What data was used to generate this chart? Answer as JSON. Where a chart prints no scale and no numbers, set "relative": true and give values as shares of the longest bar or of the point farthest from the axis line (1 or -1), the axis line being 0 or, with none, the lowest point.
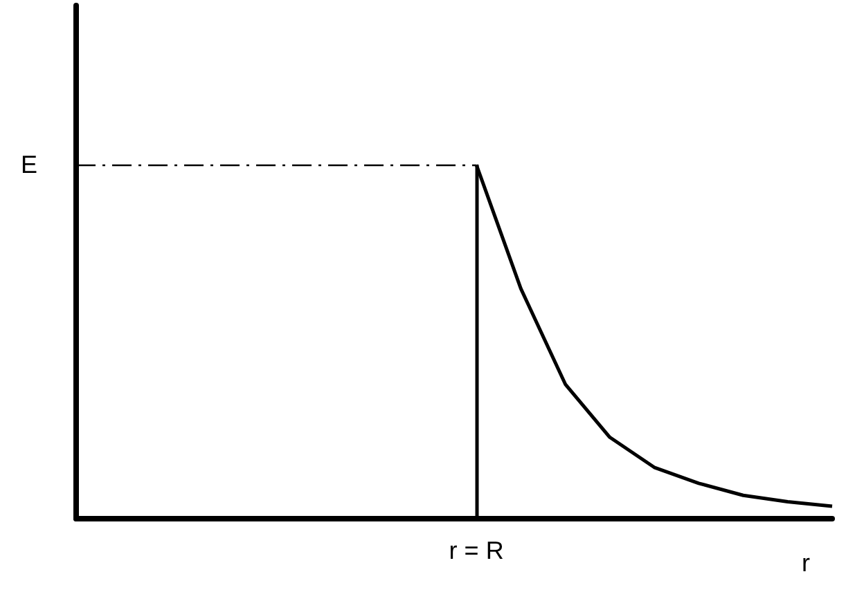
{
  "chart_data": {
    "type": "line",
    "relative": true,
    "xlabel": "r",
    "grid": false,
    "marker": "none",
    "line_style": "solid",
    "categories": [
      null,
      null,
      null,
      null,
      null,
      null,
      null,
      null,
      null,
      null,
      null,
      null,
      null,
      null,
      null,
      null,
      null,
      null
    ],
    "series": [
      {
        "color": "#000000",
        "values": [
          null,
          null,
          null,
          null,
          null,
          null,
          null,
          null,
          null,
          1,
          0.65,
          0.38,
          0.23,
          0.145,
          0.1,
          0.066,
          0.048,
          0.035
        ]
      }
    ],
    "annotations": [
      "r = R"
    ],
    "ref_lines": [
      {
        "axis": "y",
        "value": 1,
        "label": "E",
        "line_style": "dashdot",
        "color": "#000000"
      }
    ]
  }
}
